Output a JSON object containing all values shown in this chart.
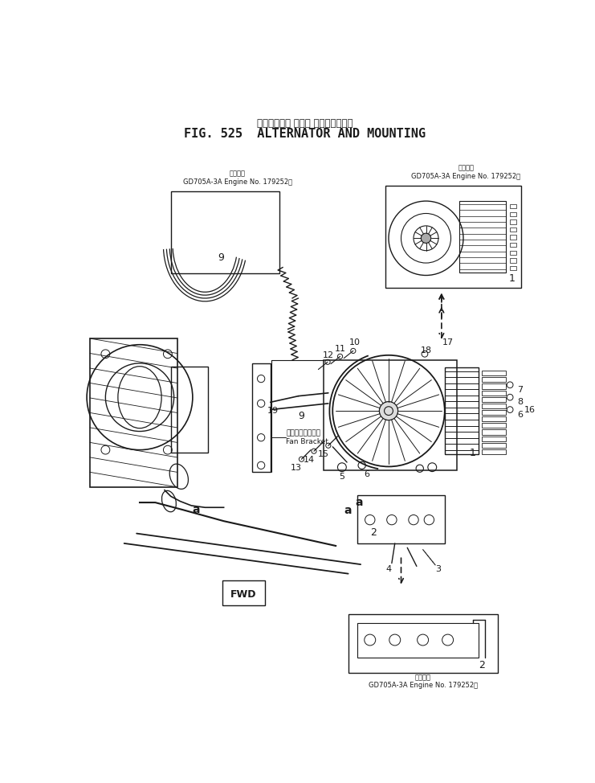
{
  "title_jp": "オルタネータ および マウンティング",
  "title_en": "FIG. 525  ALTERNATOR AND MOUNTING",
  "bg_color": "#ffffff",
  "lc": "#1a1a1a",
  "fig_width": 7.41,
  "fig_height": 9.74,
  "dpi": 100,
  "box1_label": "適用号機\nGD705A-3A Engine No. 179252～",
  "box2_label": "適用号機\nGD705A-3A Engine No. 179252～",
  "box3_label": "適用号機\nGD705A-3A Engine No. 179252～",
  "fan_bracket": "ファンブラケット\nFan Bracket",
  "fwd": "FWD"
}
